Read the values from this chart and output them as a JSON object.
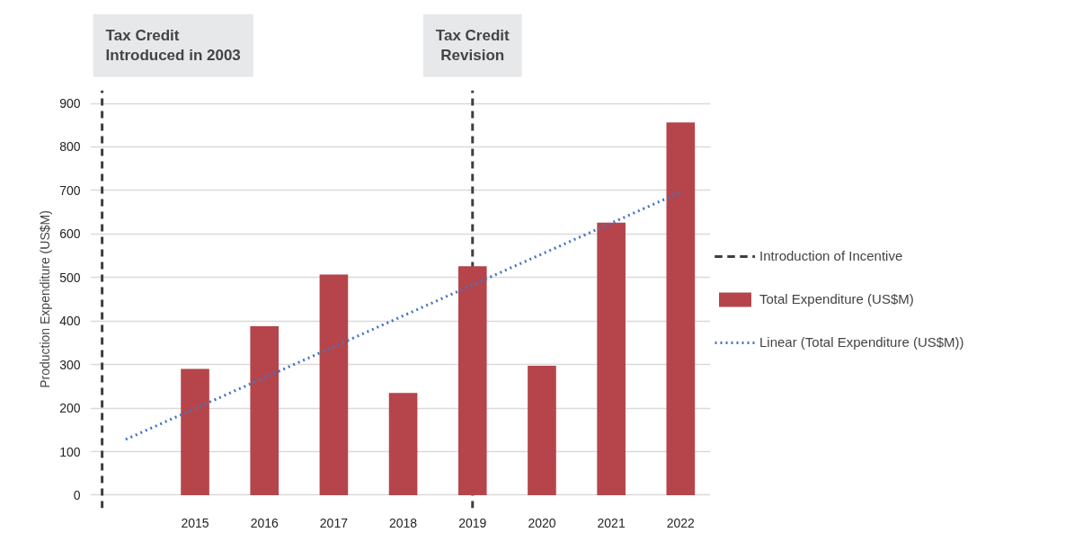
{
  "chart_data": {
    "type": "bar",
    "ylabel": "Production Expenditure (US$M)",
    "x": [
      2015,
      2016,
      2017,
      2018,
      2019,
      2020,
      2021,
      2022
    ],
    "series": [
      {
        "name": "Total Expenditure (US$M)",
        "color": "#b5454b",
        "values": [
          290,
          388,
          507,
          235,
          526,
          297,
          626,
          856
        ]
      },
      {
        "name": "Linear (Total Expenditure (US$M))",
        "type": "line",
        "color": "#4472c4",
        "line_style": "dotted",
        "x": [
          2014,
          2022
        ],
        "values": [
          128,
          696
        ]
      }
    ],
    "xlim": [
      2013.49,
      2022.43
    ],
    "xticks": [
      2015,
      2016,
      2017,
      2018,
      2019,
      2020,
      2021,
      2022
    ],
    "ylim": [
      -30,
      930
    ],
    "yticks": [
      0,
      100,
      200,
      300,
      400,
      500,
      600,
      700,
      800,
      900
    ],
    "grid": "y",
    "legend": "right",
    "ref_lines": [
      {
        "axis": "x",
        "value": 2013.66,
        "label": "Tax Credit Introduced in 2003",
        "color": "#3a3f44",
        "line_style": "dashed"
      },
      {
        "axis": "x",
        "value": 2019,
        "label": "Tax Credit Revision",
        "color": "#3a3f44",
        "line_style": "dashed"
      }
    ],
    "annotations": [
      "Introduction of Incentive"
    ]
  }
}
